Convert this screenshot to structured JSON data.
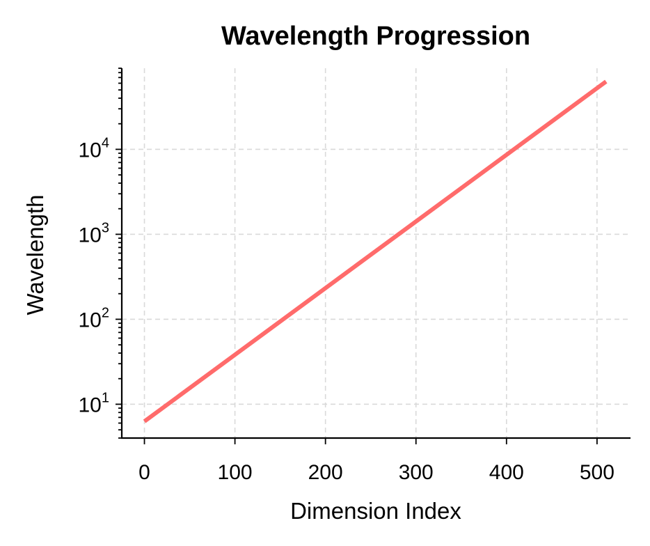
{
  "chart_data": {
    "type": "line",
    "title": "Wavelength Progression",
    "xlabel": "Dimension Index",
    "ylabel": "Wavelength",
    "yscale": "log",
    "xlim": [
      -25,
      537
    ],
    "ylim": [
      4,
      90000
    ],
    "grid": true,
    "x_ticks": [
      0,
      100,
      200,
      300,
      400,
      500
    ],
    "x_tick_labels": [
      "0",
      "100",
      "200",
      "300",
      "400",
      "500"
    ],
    "y_ticks": [
      10,
      100,
      1000,
      10000
    ],
    "y_tick_labels": [
      {
        "base": "10",
        "exp": "1"
      },
      {
        "base": "10",
        "exp": "2"
      },
      {
        "base": "10",
        "exp": "3"
      },
      {
        "base": "10",
        "exp": "4"
      }
    ],
    "series": [
      {
        "color": "#ff6b6b",
        "x": [
          0,
          510
        ],
        "y": [
          6.28,
          62832
        ]
      }
    ]
  }
}
